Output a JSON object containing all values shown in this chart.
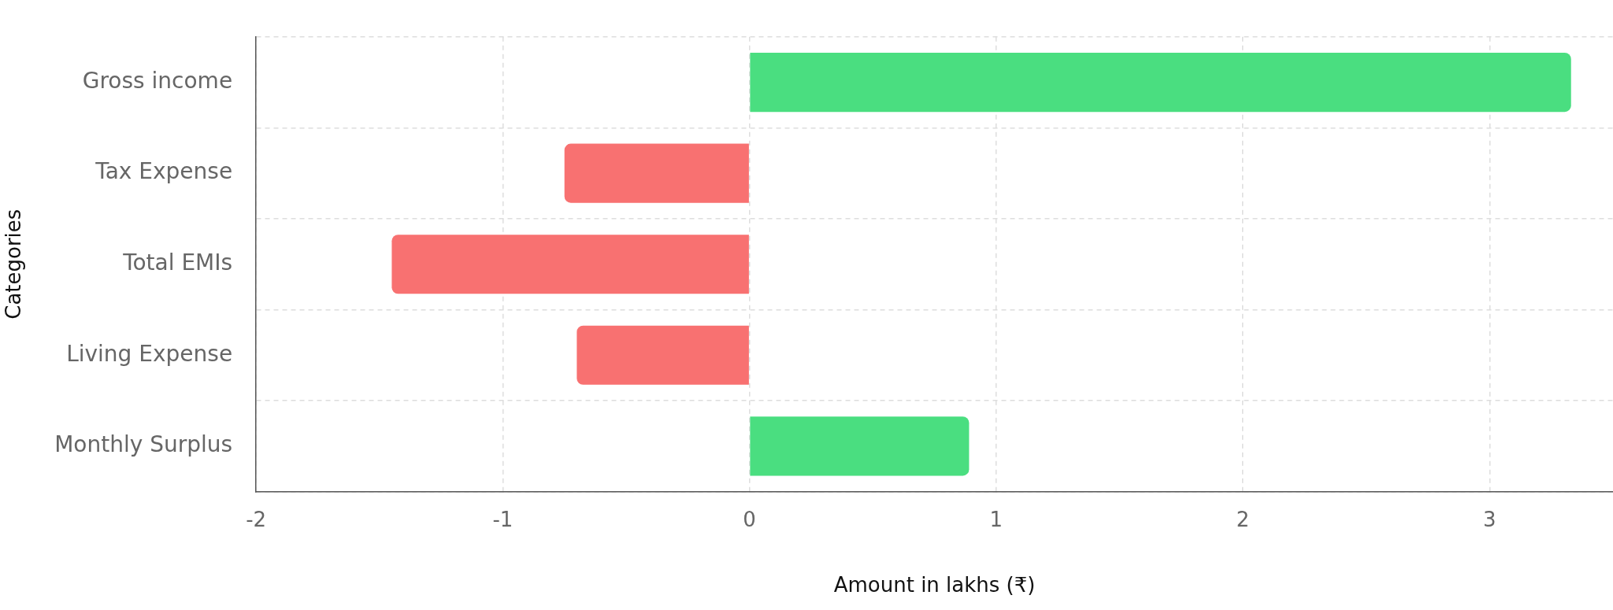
{
  "chart_data": {
    "type": "bar",
    "orientation": "horizontal",
    "xlabel": "Amount in lakhs (₹)",
    "ylabel": "Categories",
    "categories": [
      "Gross income",
      "Tax Expense",
      "Total EMIs",
      "Living Expense",
      "Monthly Surplus"
    ],
    "values": [
      3.33,
      -0.75,
      -1.45,
      -0.7,
      0.89
    ],
    "colors": [
      "#4ade80",
      "#f87171",
      "#f87171",
      "#f87171",
      "#4ade80"
    ],
    "xlim": [
      -2,
      3.5
    ],
    "xticks": [
      -2,
      -1,
      0,
      1,
      2,
      3
    ],
    "grid": true,
    "legend": false
  }
}
